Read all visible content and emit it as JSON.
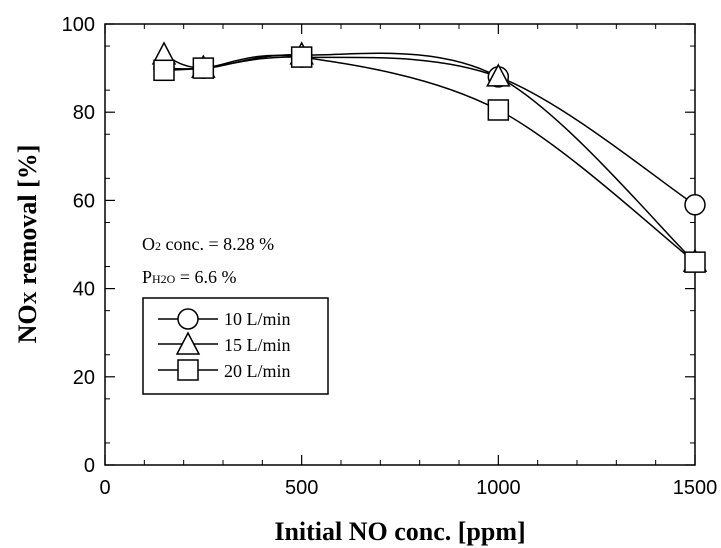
{
  "chart_data": {
    "type": "line",
    "xlabel": "Initial NO conc. [ppm]",
    "ylabel_main": "NO",
    "ylabel_sub": "X",
    "ylabel_rest": " removal [%]",
    "xlim": [
      0,
      1500
    ],
    "ylim": [
      0,
      100
    ],
    "xticks": [
      0,
      500,
      1000,
      1500
    ],
    "yticks": [
      0,
      20,
      40,
      60,
      80,
      100
    ],
    "grid": false,
    "legend_position": "center-left",
    "annotations": {
      "o2_main": "O",
      "o2_sub": "2",
      "o2_rest": " conc. = 8.28 %",
      "ph2o_main": "P",
      "ph2o_sub": "H2O",
      "ph2o_rest": " = 6.6 %"
    },
    "series": [
      {
        "name": "10 L/min",
        "marker": "circle",
        "x": [
          150,
          250,
          500,
          1000,
          1500
        ],
        "y": [
          90,
          90,
          92.5,
          88,
          59
        ]
      },
      {
        "name": "15 L/min",
        "marker": "triangle",
        "x": [
          150,
          250,
          500,
          1000,
          1500
        ],
        "y": [
          93,
          90,
          93,
          88,
          46
        ]
      },
      {
        "name": "20 L/min",
        "marker": "square",
        "x": [
          150,
          250,
          500,
          1000,
          1500
        ],
        "y": [
          89.5,
          90,
          92.5,
          80.5,
          46
        ]
      }
    ]
  }
}
